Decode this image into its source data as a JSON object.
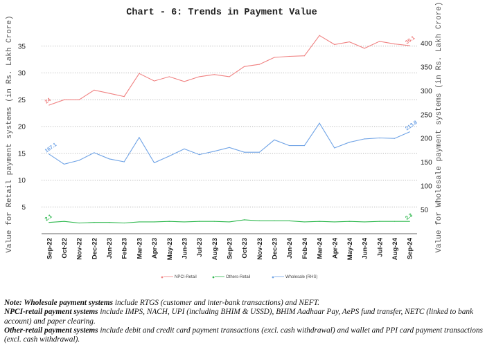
{
  "chart_data": {
    "type": "line",
    "title": "Chart - 6: Trends in Payment Value",
    "ylabel_left": "Value for Retail payment systems (in Rs. Lakh Crore)",
    "ylabel_right": "Value for Wholesale payment systems (in Rs. Lakh Crore)",
    "categories": [
      "Sep-22",
      "Oct-22",
      "Nov-22",
      "Dec-22",
      "Jan-23",
      "Feb-23",
      "Mar-23",
      "Apr-23",
      "May-23",
      "Jun-23",
      "Jul-23",
      "Aug-23",
      "Sep-23",
      "Oct-23",
      "Nov-23",
      "Dec-23",
      "Jan-24",
      "Feb-24",
      "Mar-24",
      "Apr-24",
      "May-24",
      "Jun-24",
      "Jul-24",
      "Aug-24",
      "Sep-24"
    ],
    "ylim_left": [
      0,
      40
    ],
    "ylim_right": [
      0,
      450
    ],
    "yticks_left": [
      5,
      10,
      15,
      20,
      25,
      30,
      35
    ],
    "yticks_right": [
      50,
      100,
      150,
      200,
      250,
      300,
      350,
      400
    ],
    "grid": "horizontal dotted",
    "legend_position": "bottom",
    "series": [
      {
        "name": "NPCI-Retail",
        "axis": "left",
        "color": "#f08080",
        "values": [
          24.0,
          25.0,
          25.0,
          26.8,
          26.2,
          25.6,
          29.9,
          28.5,
          29.3,
          28.4,
          29.3,
          29.7,
          29.3,
          31.2,
          31.6,
          32.9,
          33.1,
          33.2,
          37.0,
          35.3,
          35.8,
          34.6,
          35.9,
          35.4,
          35.1
        ],
        "labels": {
          "0": "24",
          "24": "35.1"
        }
      },
      {
        "name": "Others-Retail",
        "axis": "left",
        "color": "#2db84d",
        "values": [
          2.1,
          2.3,
          2.0,
          2.1,
          2.1,
          2.0,
          2.2,
          2.2,
          2.3,
          2.2,
          2.3,
          2.3,
          2.2,
          2.6,
          2.4,
          2.4,
          2.4,
          2.2,
          2.3,
          2.2,
          2.3,
          2.2,
          2.3,
          2.3,
          2.3
        ],
        "labels": {
          "0": "2.1",
          "24": "2.3"
        }
      },
      {
        "name": "Wholesale (RHS)",
        "axis": "right",
        "color": "#6fa3e6",
        "values": [
          167.1,
          146,
          154,
          170,
          157,
          151,
          202,
          149,
          163,
          178,
          166,
          173,
          181,
          171,
          171,
          197,
          185,
          185,
          232,
          180,
          192,
          199,
          201,
          200,
          213.8
        ],
        "labels": {
          "0": "167.1",
          "24": "213.8"
        }
      }
    ]
  },
  "notes": [
    {
      "bold": "Note: Wholesale payment systems",
      "text": " include RTGS (customer and inter-bank transactions) and NEFT."
    },
    {
      "bold": "NPCI-retail payment systems",
      "text": " include IMPS, NACH, UPI (including BHIM & USSD), BHIM Aadhaar Pay, AePS fund transfer, NETC (linked to bank account) and paper clearing."
    },
    {
      "bold": "Other-retail payment systems",
      "text": " include debit and credit card payment transactions (excl. cash withdrawal) and wallet and PPI card payment transactions (excl. cash withdrawal)."
    }
  ]
}
